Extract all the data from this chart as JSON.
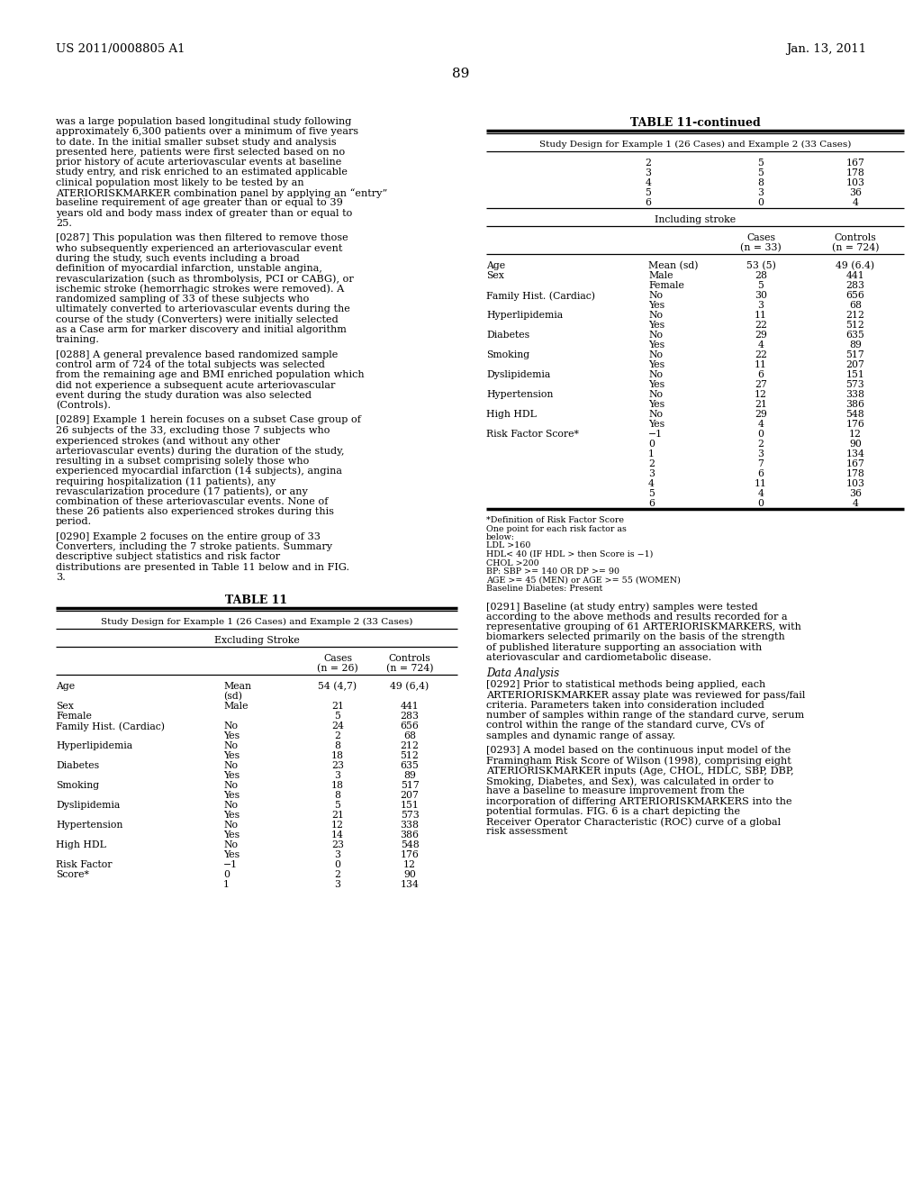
{
  "page_number": "89",
  "header_left": "US 2011/0008805 A1",
  "header_right": "Jan. 13, 2011",
  "bg_color": "#ffffff",
  "left_paragraphs": [
    "was a large population based longitudinal study following approximately 6,300 patients over a minimum of five years to date. In the initial smaller subset study and analysis presented here, patients were first selected based on no prior history of acute arteriovascular events at baseline study entry, and risk enriched to an estimated applicable clinical population most likely to be tested by an ATERIORISKMARKER combination panel by applying an “entry” baseline requirement of age greater than or equal to 39 years old and body mass index of greater than or equal to 25.",
    "[0287]   This population was then filtered to remove those who subsequently experienced an arteriovascular event during the study, such events including a broad definition of myocardial infarction, unstable angina, revascularization (such as thrombolysis, PCI or CABG), or ischemic stroke (hemorrhagic strokes were removed). A randomized sampling of 33 of these subjects who ultimately converted to arteriovascular events during the course of the study (Converters) were initially selected as a Case arm for marker discovery and initial algorithm training.",
    "[0288]   A general prevalence based randomized sample control arm of 724 of the total subjects was selected from the remaining age and BMI enriched population which did not experience a subsequent acute arteriovascular event during the study duration was also selected (Controls).",
    "[0289]   Example 1 herein focuses on a subset Case group of 26 subjects of the 33, excluding those 7 subjects who experienced strokes (and without any other arteriovascular events) during the duration of the study, resulting in a subset comprising solely those who experienced myocardial infarction (14 subjects), angina requiring hospitalization (11 patients), any revascularization procedure (17 patients), or any combination of these arteriovascular events. None of these 26 patients also experienced strokes during this period.",
    "[0290]   Example 2 focuses on the entire group of 33 Converters, including the 7 stroke patients. Summary descriptive subject statistics and risk factor distributions are presented in Table 11 below and in FIG. 3."
  ],
  "table11_title": "TABLE 11",
  "table11_subtitle": "Study Design for Example 1 (26 Cases) and Example 2 (33 Cases)",
  "table11_section": "Excluding Stroke",
  "table11_rows": [
    [
      "Age",
      "Mean",
      "54 (4,7)",
      "49 (6,4)"
    ],
    [
      "",
      "(sd)",
      "",
      ""
    ],
    [
      "Sex",
      "Male",
      "21",
      "441"
    ],
    [
      "Female",
      "",
      "5",
      "283"
    ],
    [
      "Family Hist. (Cardiac)",
      "No",
      "24",
      "656"
    ],
    [
      "",
      "Yes",
      "2",
      "68"
    ],
    [
      "Hyperlipidemia",
      "No",
      "8",
      "212"
    ],
    [
      "",
      "Yes",
      "18",
      "512"
    ],
    [
      "Diabetes",
      "No",
      "23",
      "635"
    ],
    [
      "",
      "Yes",
      "3",
      "89"
    ],
    [
      "Smoking",
      "No",
      "18",
      "517"
    ],
    [
      "",
      "Yes",
      "8",
      "207"
    ],
    [
      "Dyslipidemia",
      "No",
      "5",
      "151"
    ],
    [
      "",
      "Yes",
      "21",
      "573"
    ],
    [
      "Hypertension",
      "No",
      "12",
      "338"
    ],
    [
      "",
      "Yes",
      "14",
      "386"
    ],
    [
      "High HDL",
      "No",
      "23",
      "548"
    ],
    [
      "",
      "Yes",
      "3",
      "176"
    ],
    [
      "Risk Factor",
      "−1",
      "0",
      "12"
    ],
    [
      "Score*",
      "0",
      "2",
      "90"
    ],
    [
      "",
      "1",
      "3",
      "134"
    ]
  ],
  "table11cont_title": "TABLE 11-continued",
  "table11cont_subtitle": "Study Design for Example 1 (26 Cases) and Example 2 (33 Cases)",
  "table11cont_top_rows": [
    [
      "2",
      "5",
      "167"
    ],
    [
      "3",
      "5",
      "178"
    ],
    [
      "4",
      "8",
      "103"
    ],
    [
      "5",
      "3",
      "36"
    ],
    [
      "6",
      "0",
      "4"
    ]
  ],
  "table11cont_section2": "Including stroke",
  "table11cont_rows2": [
    [
      "Age",
      "Mean (sd)",
      "53 (5)",
      "49 (6.4)"
    ],
    [
      "Sex",
      "Male",
      "28",
      "441"
    ],
    [
      "",
      "Female",
      "5",
      "283"
    ],
    [
      "Family Hist. (Cardiac)",
      "No",
      "30",
      "656"
    ],
    [
      "",
      "Yes",
      "3",
      "68"
    ],
    [
      "Hyperlipidemia",
      "No",
      "11",
      "212"
    ],
    [
      "",
      "Yes",
      "22",
      "512"
    ],
    [
      "Diabetes",
      "No",
      "29",
      "635"
    ],
    [
      "",
      "Yes",
      "4",
      "89"
    ],
    [
      "Smoking",
      "No",
      "22",
      "517"
    ],
    [
      "",
      "Yes",
      "11",
      "207"
    ],
    [
      "Dyslipidemia",
      "No",
      "6",
      "151"
    ],
    [
      "",
      "Yes",
      "27",
      "573"
    ],
    [
      "Hypertension",
      "No",
      "12",
      "338"
    ],
    [
      "",
      "Yes",
      "21",
      "386"
    ],
    [
      "High HDL",
      "No",
      "29",
      "548"
    ],
    [
      "",
      "Yes",
      "4",
      "176"
    ],
    [
      "Risk Factor Score*",
      "−1",
      "0",
      "12"
    ],
    [
      "",
      "0",
      "2",
      "90"
    ],
    [
      "",
      "1",
      "3",
      "134"
    ],
    [
      "",
      "2",
      "7",
      "167"
    ],
    [
      "",
      "3",
      "6",
      "178"
    ],
    [
      "",
      "4",
      "11",
      "103"
    ],
    [
      "",
      "5",
      "4",
      "36"
    ],
    [
      "",
      "6",
      "0",
      "4"
    ]
  ],
  "footnotes": [
    "*Definition of Risk Factor Score",
    "One point for each risk factor as",
    "below:",
    "LDL >160",
    "HDL< 40 (IF HDL > then Score is −1)",
    "CHOL >200",
    "BP: SBP >= 140 OR DP >= 90",
    "AGE >= 45 (MEN) or AGE >= 55 (WOMEN)",
    "Baseline Diabetes: Present"
  ],
  "right_paragraphs": [
    {
      "text": "[0291]   Baseline (at study entry) samples were tested according to the above methods and results recorded for a representative grouping of 61 ARTERIORISKMARKERS, with biomarkers selected primarily on the basis of the strength of published literature supporting an association with ateriovascular and cardiometabolic disease.",
      "style": "normal"
    },
    {
      "text": "Data Analysis",
      "style": "section"
    },
    {
      "text": "[0292]   Prior to statistical methods being applied, each ARTERIORISKMARKER assay plate was reviewed for pass/fail criteria. Parameters taken into consideration included number of samples within range of the standard curve, serum control within the range of the standard curve, CVs of samples and dynamic range of assay.",
      "style": "normal"
    },
    {
      "text": "[0293]   A model based on the continuous input model of the Framingham Risk Score of Wilson (1998), comprising eight ATERIORISKMARKER inputs (Age, CHOL, HDLC, SBP, DBP, Smoking, Diabetes, and Sex), was calculated in order to have a baseline to measure improvement from the incorporation of differing ARTERIORISKMARKERS into the potential formulas. FIG. 6 is a chart depicting the Receiver Operator Characteristic (ROC) curve of a global risk assessment",
      "style": "normal"
    }
  ]
}
